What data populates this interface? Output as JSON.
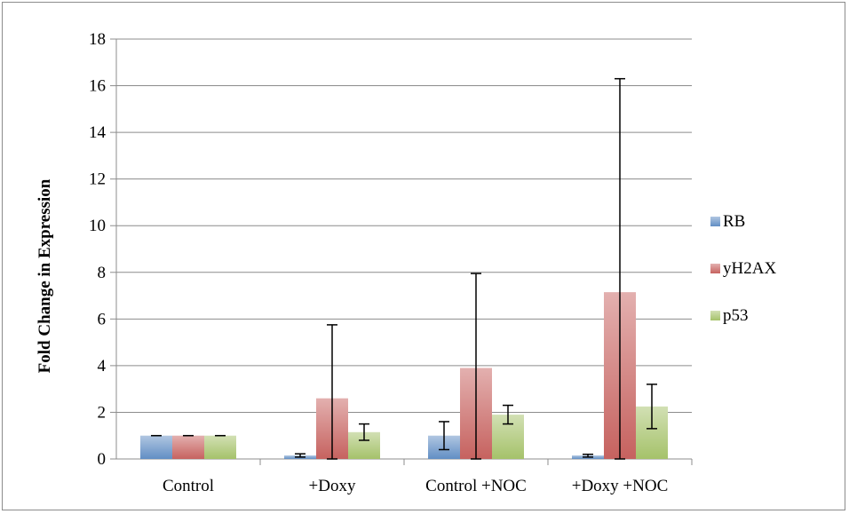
{
  "chart_data": {
    "type": "bar",
    "title": "",
    "xlabel": "",
    "ylabel": "Fold Change in Expression",
    "categories": [
      "Control",
      "+Doxy",
      "Control +NOC",
      "+Doxy +NOC"
    ],
    "ylim": [
      0,
      18
    ],
    "yticks": [
      0,
      2,
      4,
      6,
      8,
      10,
      12,
      14,
      16,
      18
    ],
    "ytick_labels": [
      "0",
      "2",
      "4",
      "6",
      "8",
      "10",
      "12",
      "14",
      "16",
      "18"
    ],
    "grid": true,
    "legend_position": "right",
    "series": [
      {
        "name": "RB",
        "color": "#4f81bd",
        "values": [
          1.0,
          0.15,
          1.0,
          0.15
        ],
        "error_low": [
          1.0,
          0.08,
          0.4,
          0.08
        ],
        "error_high": [
          1.0,
          0.22,
          1.6,
          0.2
        ]
      },
      {
        "name": "yH2AX",
        "color": "#c0504d",
        "values": [
          1.0,
          2.6,
          3.9,
          7.15
        ],
        "error_low": [
          1.0,
          0.0,
          0.0,
          0.0
        ],
        "error_high": [
          1.0,
          5.75,
          7.95,
          16.3
        ]
      },
      {
        "name": "p53",
        "color": "#9bbb59",
        "values": [
          1.0,
          1.15,
          1.9,
          2.25
        ],
        "error_low": [
          1.0,
          0.8,
          1.5,
          1.3
        ],
        "error_high": [
          1.0,
          1.5,
          2.3,
          3.2
        ]
      }
    ]
  }
}
